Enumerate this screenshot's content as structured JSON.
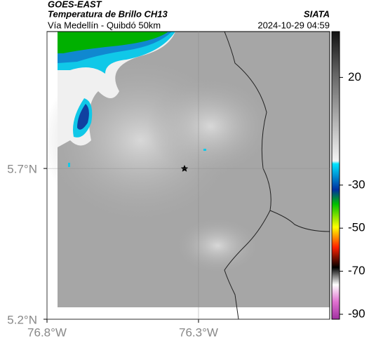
{
  "header": {
    "satellite": "GOES-EAST",
    "product": "Temperatura de Brillo CH13",
    "location": "Vía Medellín - Quibdó 50km",
    "source": "SIATA",
    "timestamp": "2024-10-29 04:59"
  },
  "map": {
    "xlim": [
      -76.8,
      -75.867
    ],
    "ylim": [
      5.2,
      6.154
    ],
    "xticks": [
      {
        "value": -76.8,
        "label": "76.8°W"
      },
      {
        "value": -76.3,
        "label": "76.3°W"
      }
    ],
    "yticks": [
      {
        "value": 5.7,
        "label": "5.7°N"
      },
      {
        "value": 5.2,
        "label": "5.2°N"
      }
    ]
  },
  "colorbar": {
    "lim": [
      -92.3,
      41.3
    ],
    "ticks": [
      20,
      -30,
      -50,
      -70,
      -90
    ]
  }
}
